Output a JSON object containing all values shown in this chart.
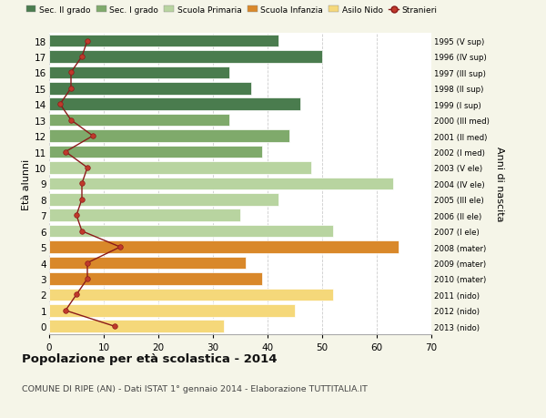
{
  "ages": [
    18,
    17,
    16,
    15,
    14,
    13,
    12,
    11,
    10,
    9,
    8,
    7,
    6,
    5,
    4,
    3,
    2,
    1,
    0
  ],
  "bar_values": [
    42,
    50,
    33,
    37,
    46,
    33,
    44,
    39,
    48,
    63,
    42,
    35,
    52,
    64,
    36,
    39,
    52,
    45,
    32
  ],
  "bar_colors": [
    "#4a7c4e",
    "#4a7c4e",
    "#4a7c4e",
    "#4a7c4e",
    "#4a7c4e",
    "#7faa6b",
    "#7faa6b",
    "#7faa6b",
    "#b8d4a0",
    "#b8d4a0",
    "#b8d4a0",
    "#b8d4a0",
    "#b8d4a0",
    "#d9882a",
    "#d9882a",
    "#d9882a",
    "#f5d87a",
    "#f5d87a",
    "#f5d87a"
  ],
  "stranieri_values": [
    7,
    6,
    4,
    4,
    2,
    4,
    8,
    3,
    7,
    6,
    6,
    5,
    6,
    13,
    7,
    7,
    5,
    3,
    12
  ],
  "right_labels": [
    "1995 (V sup)",
    "1996 (IV sup)",
    "1997 (III sup)",
    "1998 (II sup)",
    "1999 (I sup)",
    "2000 (III med)",
    "2001 (II med)",
    "2002 (I med)",
    "2003 (V ele)",
    "2004 (IV ele)",
    "2005 (III ele)",
    "2006 (II ele)",
    "2007 (I ele)",
    "2008 (mater)",
    "2009 (mater)",
    "2010 (mater)",
    "2011 (nido)",
    "2012 (nido)",
    "2013 (nido)"
  ],
  "legend_labels": [
    "Sec. II grado",
    "Sec. I grado",
    "Scuola Primaria",
    "Scuola Infanzia",
    "Asilo Nido",
    "Stranieri"
  ],
  "legend_colors": [
    "#4a7c4e",
    "#7faa6b",
    "#b8d4a0",
    "#d9882a",
    "#f5d87a",
    "#c0392b"
  ],
  "ylabel": "Età alunni",
  "ylabel_right": "Anni di nascita",
  "title": "Popolazione per età scolastica - 2014",
  "subtitle": "COMUNE DI RIPE (AN) - Dati ISTAT 1° gennaio 2014 - Elaborazione TUTTITALIA.IT",
  "xlim": [
    0,
    70
  ],
  "bg_color": "#f5f5e8",
  "bar_bg_color": "#ffffff",
  "grid_color": "#cccccc"
}
